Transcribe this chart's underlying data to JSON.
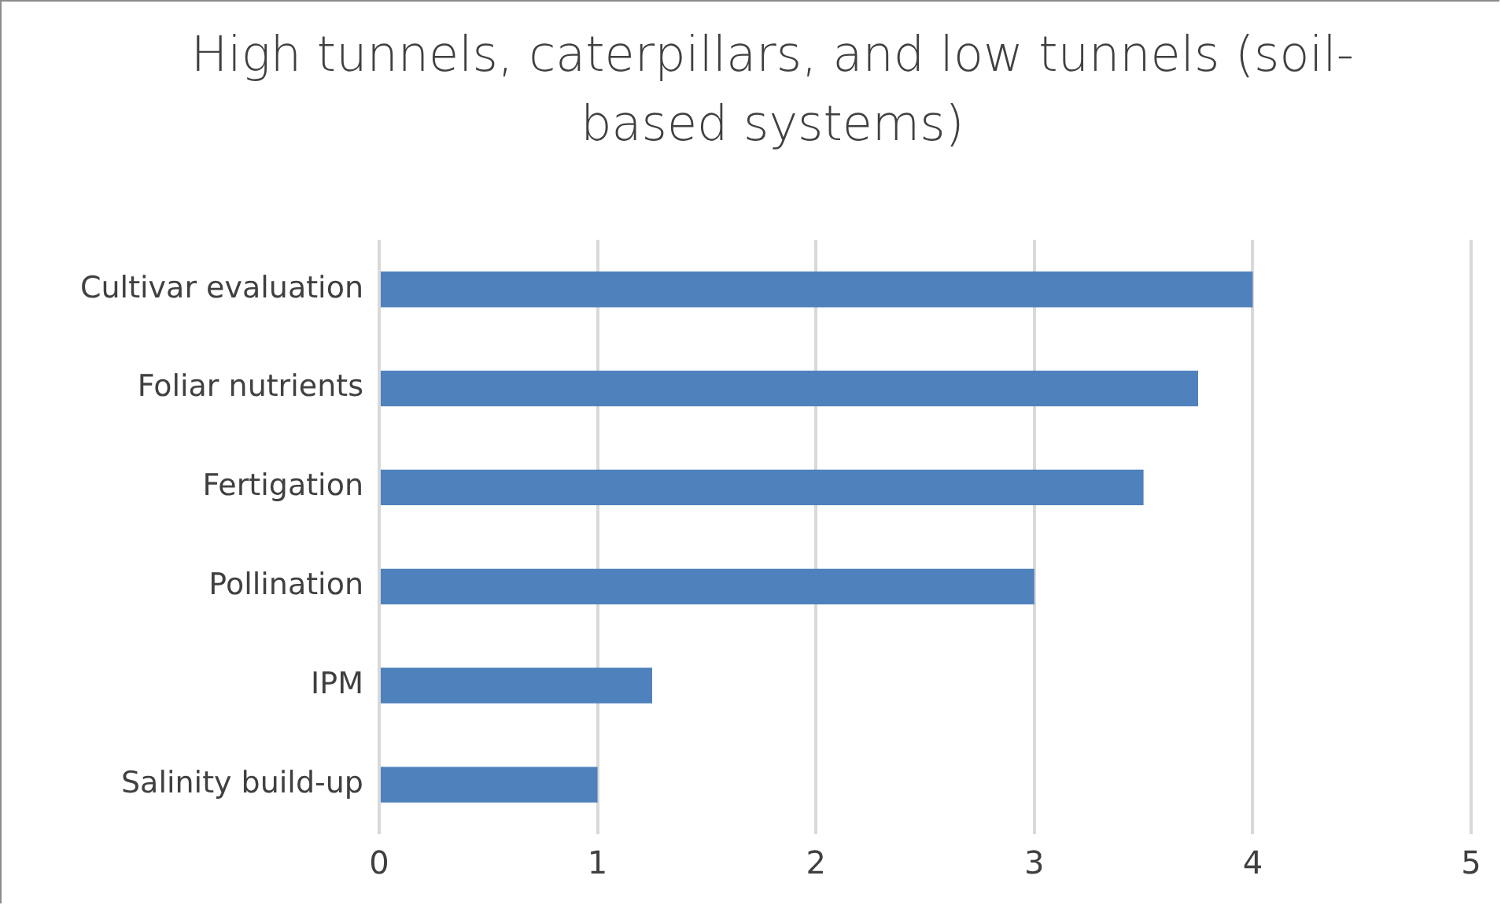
{
  "chart_data": {
    "type": "bar",
    "orientation": "horizontal",
    "title": "High tunnels, caterpillars, and low tunnels (soil-based systems)",
    "categories": [
      "Cultivar evaluation",
      "Foliar nutrients",
      "Fertigation",
      "Pollination",
      "IPM",
      "Salinity build-up"
    ],
    "values": [
      4,
      3.75,
      3.5,
      3,
      1.25,
      1
    ],
    "color": "#4f81bd",
    "xlim": [
      0,
      5
    ],
    "xticks": [
      0,
      1,
      2,
      3,
      4,
      5
    ],
    "grid": "x",
    "legend": false
  }
}
